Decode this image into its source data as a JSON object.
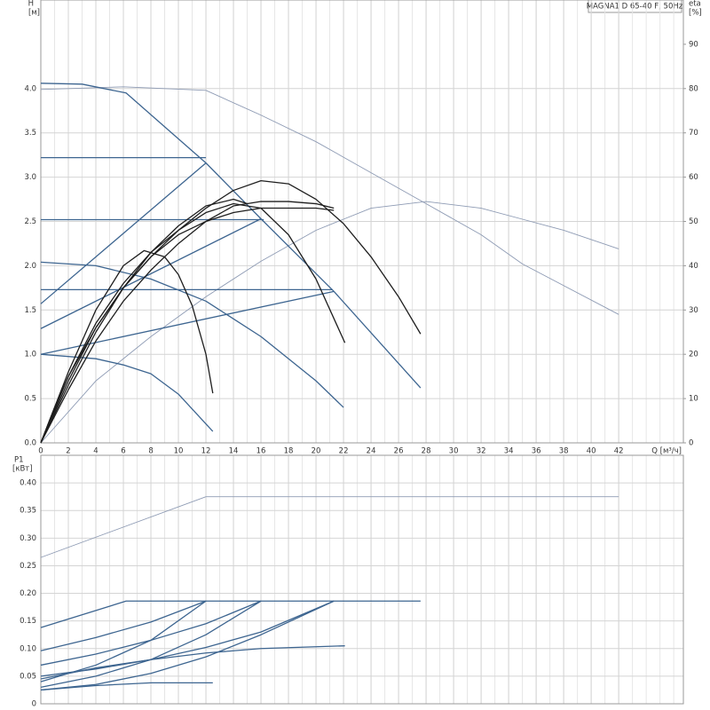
{
  "chart_data": [
    {
      "type": "line",
      "title": "MAGNA1 D 65-40 F, 50Hz",
      "y_label": "H",
      "y_unit": "[м]",
      "y2_label": "eta",
      "y2_unit": "[%]",
      "x_label": "Q [м³/ч]",
      "xlim": [
        0,
        46.7
      ],
      "xticks": [
        0,
        2,
        4,
        6,
        8,
        10,
        12,
        14,
        16,
        18,
        20,
        22,
        24,
        26,
        28,
        30,
        32,
        34,
        36,
        38,
        40,
        42
      ],
      "x_minor_step": 1,
      "ylim": [
        0,
        5
      ],
      "yticks": [
        {
          "value": 0,
          "label": "0.0"
        },
        0.5,
        {
          "value": 1,
          "label": "1.0"
        },
        1.5,
        {
          "value": 2,
          "label": "2.0"
        },
        2.5,
        {
          "value": 3,
          "label": "3.0"
        },
        3.5,
        {
          "value": 4,
          "label": "4.0"
        }
      ],
      "y2lim": [
        0,
        100
      ],
      "y2ticks": [
        0,
        10,
        20,
        30,
        40,
        50,
        60,
        70,
        80,
        90
      ],
      "grid": true,
      "series": [
        {
          "color": "#8e9bb4",
          "x": [
            0,
            6,
            12,
            16,
            20,
            24,
            28,
            32,
            35,
            42
          ],
          "values": [
            3.99,
            4.02,
            3.98,
            3.7,
            3.4,
            3.05,
            2.7,
            2.35,
            2.02,
            1.45
          ]
        },
        {
          "color": "#8e9bb4",
          "axis": "y2",
          "x": [
            0,
            4,
            8,
            12,
            16,
            20,
            24,
            28,
            32,
            35,
            38,
            42
          ],
          "values": [
            0,
            14,
            24,
            33,
            41,
            48,
            53,
            54.5,
            53,
            50.5,
            48,
            43.8
          ]
        },
        {
          "color": "#3d6590",
          "x": [
            0,
            3,
            6.2,
            12,
            16,
            21.3,
            27.6
          ],
          "values": [
            4.06,
            4.05,
            3.95,
            3.16,
            2.53,
            1.71,
            0.62
          ]
        },
        {
          "color": "#3d6590",
          "x": [
            0,
            12
          ],
          "values": [
            3.22,
            3.22
          ]
        },
        {
          "color": "#3d6590",
          "x": [
            0,
            16.2
          ],
          "values": [
            2.52,
            2.52
          ]
        },
        {
          "color": "#3d6590",
          "x": [
            0,
            21.2
          ],
          "values": [
            1.73,
            1.73
          ]
        },
        {
          "color": "#3d6590",
          "x": [
            0,
            12
          ],
          "values": [
            1.57,
            3.16
          ]
        },
        {
          "color": "#3d6590",
          "x": [
            0,
            16
          ],
          "values": [
            1.29,
            2.53
          ]
        },
        {
          "color": "#3d6590",
          "x": [
            0,
            21.3
          ],
          "values": [
            1.0,
            1.71
          ]
        },
        {
          "color": "#3d6590",
          "x": [
            0,
            4,
            8,
            12,
            16,
            20,
            22
          ],
          "values": [
            2.04,
            2.0,
            1.85,
            1.6,
            1.2,
            0.7,
            0.4
          ]
        },
        {
          "color": "#3d6590",
          "x": [
            0,
            4,
            6,
            8,
            10,
            12.5
          ],
          "values": [
            1.0,
            0.95,
            0.88,
            0.78,
            0.55,
            0.13
          ]
        },
        {
          "color": "#1e1e1e",
          "axis": "y2",
          "x": [
            0,
            1,
            2,
            4,
            6,
            8,
            10,
            12,
            14,
            16,
            18,
            20,
            22,
            24,
            26,
            27.6
          ],
          "values": [
            0,
            8,
            15,
            26,
            35,
            42,
            48,
            53,
            57,
            59.2,
            58.5,
            55,
            49.5,
            42,
            33,
            24.6
          ]
        },
        {
          "color": "#1e1e1e",
          "axis": "y2",
          "x": [
            0,
            2,
            4,
            6,
            8,
            10,
            12,
            14,
            16,
            18,
            20,
            22.1
          ],
          "values": [
            0,
            15,
            27,
            36,
            43,
            48,
            52,
            54,
            53,
            47,
            37,
            22.6
          ]
        },
        {
          "color": "#1e1e1e",
          "axis": "y2",
          "x": [
            0,
            2,
            4,
            6,
            7.5,
            9,
            10,
            11,
            12,
            12.5
          ],
          "values": [
            0,
            16,
            30,
            40,
            43.4,
            42,
            38,
            31,
            20,
            11.2
          ]
        },
        {
          "color": "#1e1e1e",
          "axis": "y2",
          "x": [
            0,
            2,
            4,
            6,
            8,
            10,
            12,
            14,
            16,
            18,
            20,
            21.3
          ],
          "values": [
            0,
            14,
            26,
            35,
            42,
            47,
            50,
            52,
            53,
            53,
            53,
            52.5
          ]
        },
        {
          "color": "#1e1e1e",
          "axis": "y2",
          "x": [
            0,
            2,
            4,
            6,
            8,
            10,
            12,
            14,
            16,
            18,
            20,
            21.3
          ],
          "values": [
            0,
            12,
            23,
            32,
            39,
            45,
            50,
            53.5,
            54.5,
            54.5,
            54,
            53
          ]
        },
        {
          "color": "#1e1e1e",
          "axis": "y2",
          "x": [
            0,
            2,
            4,
            6,
            8,
            10,
            12,
            14,
            15
          ],
          "values": [
            0,
            13,
            25,
            35,
            43,
            49,
            53.5,
            55,
            54
          ]
        }
      ]
    },
    {
      "type": "line",
      "y_label": "P1",
      "y_unit": "[кВт]",
      "xlim": [
        0,
        46.7
      ],
      "xticks": [
        0,
        2,
        4,
        6,
        8,
        10,
        12,
        14,
        16,
        18,
        20,
        22,
        24,
        26,
        28,
        30,
        32,
        34,
        36,
        38,
        40,
        42
      ],
      "x_minor_step": 1,
      "ylim": [
        0,
        0.45
      ],
      "yticks": [
        0,
        0.05,
        {
          "value": 0.1,
          "label": "0.10"
        },
        0.15,
        {
          "value": 0.2,
          "label": "0.20"
        },
        0.25,
        {
          "value": 0.3,
          "label": "0.30"
        },
        0.35,
        {
          "value": 0.4,
          "label": "0.40"
        }
      ],
      "grid": true,
      "series": [
        {
          "color": "#8e9bb4",
          "x": [
            0,
            12,
            35,
            42
          ],
          "values": [
            0.265,
            0.375,
            0.375,
            0.375
          ]
        },
        {
          "color": "#3d6590",
          "x": [
            0,
            6.2,
            27.6
          ],
          "values": [
            0.138,
            0.186,
            0.186
          ]
        },
        {
          "color": "#3d6590",
          "x": [
            0,
            4,
            8,
            12
          ],
          "values": [
            0.096,
            0.12,
            0.148,
            0.186
          ]
        },
        {
          "color": "#3d6590",
          "x": [
            0,
            4,
            8,
            12,
            16
          ],
          "values": [
            0.07,
            0.09,
            0.115,
            0.145,
            0.186
          ]
        },
        {
          "color": "#3d6590",
          "x": [
            0,
            4,
            8,
            12,
            16,
            21.3
          ],
          "values": [
            0.05,
            0.063,
            0.08,
            0.102,
            0.13,
            0.186
          ]
        },
        {
          "color": "#3d6590",
          "x": [
            0,
            4,
            8,
            12
          ],
          "values": [
            0.04,
            0.07,
            0.115,
            0.186
          ]
        },
        {
          "color": "#3d6590",
          "x": [
            0,
            4,
            8,
            12,
            16
          ],
          "values": [
            0.03,
            0.05,
            0.08,
            0.125,
            0.186
          ]
        },
        {
          "color": "#3d6590",
          "x": [
            0,
            4,
            8,
            12,
            16,
            21.3
          ],
          "values": [
            0.025,
            0.035,
            0.055,
            0.085,
            0.125,
            0.186
          ]
        },
        {
          "color": "#3d6590",
          "x": [
            0,
            4,
            8,
            12,
            16,
            22.1
          ],
          "values": [
            0.045,
            0.065,
            0.08,
            0.092,
            0.1,
            0.105
          ]
        },
        {
          "color": "#3d6590",
          "x": [
            0,
            4,
            8,
            12.5
          ],
          "values": [
            0.025,
            0.033,
            0.038,
            0.038
          ]
        }
      ]
    }
  ]
}
